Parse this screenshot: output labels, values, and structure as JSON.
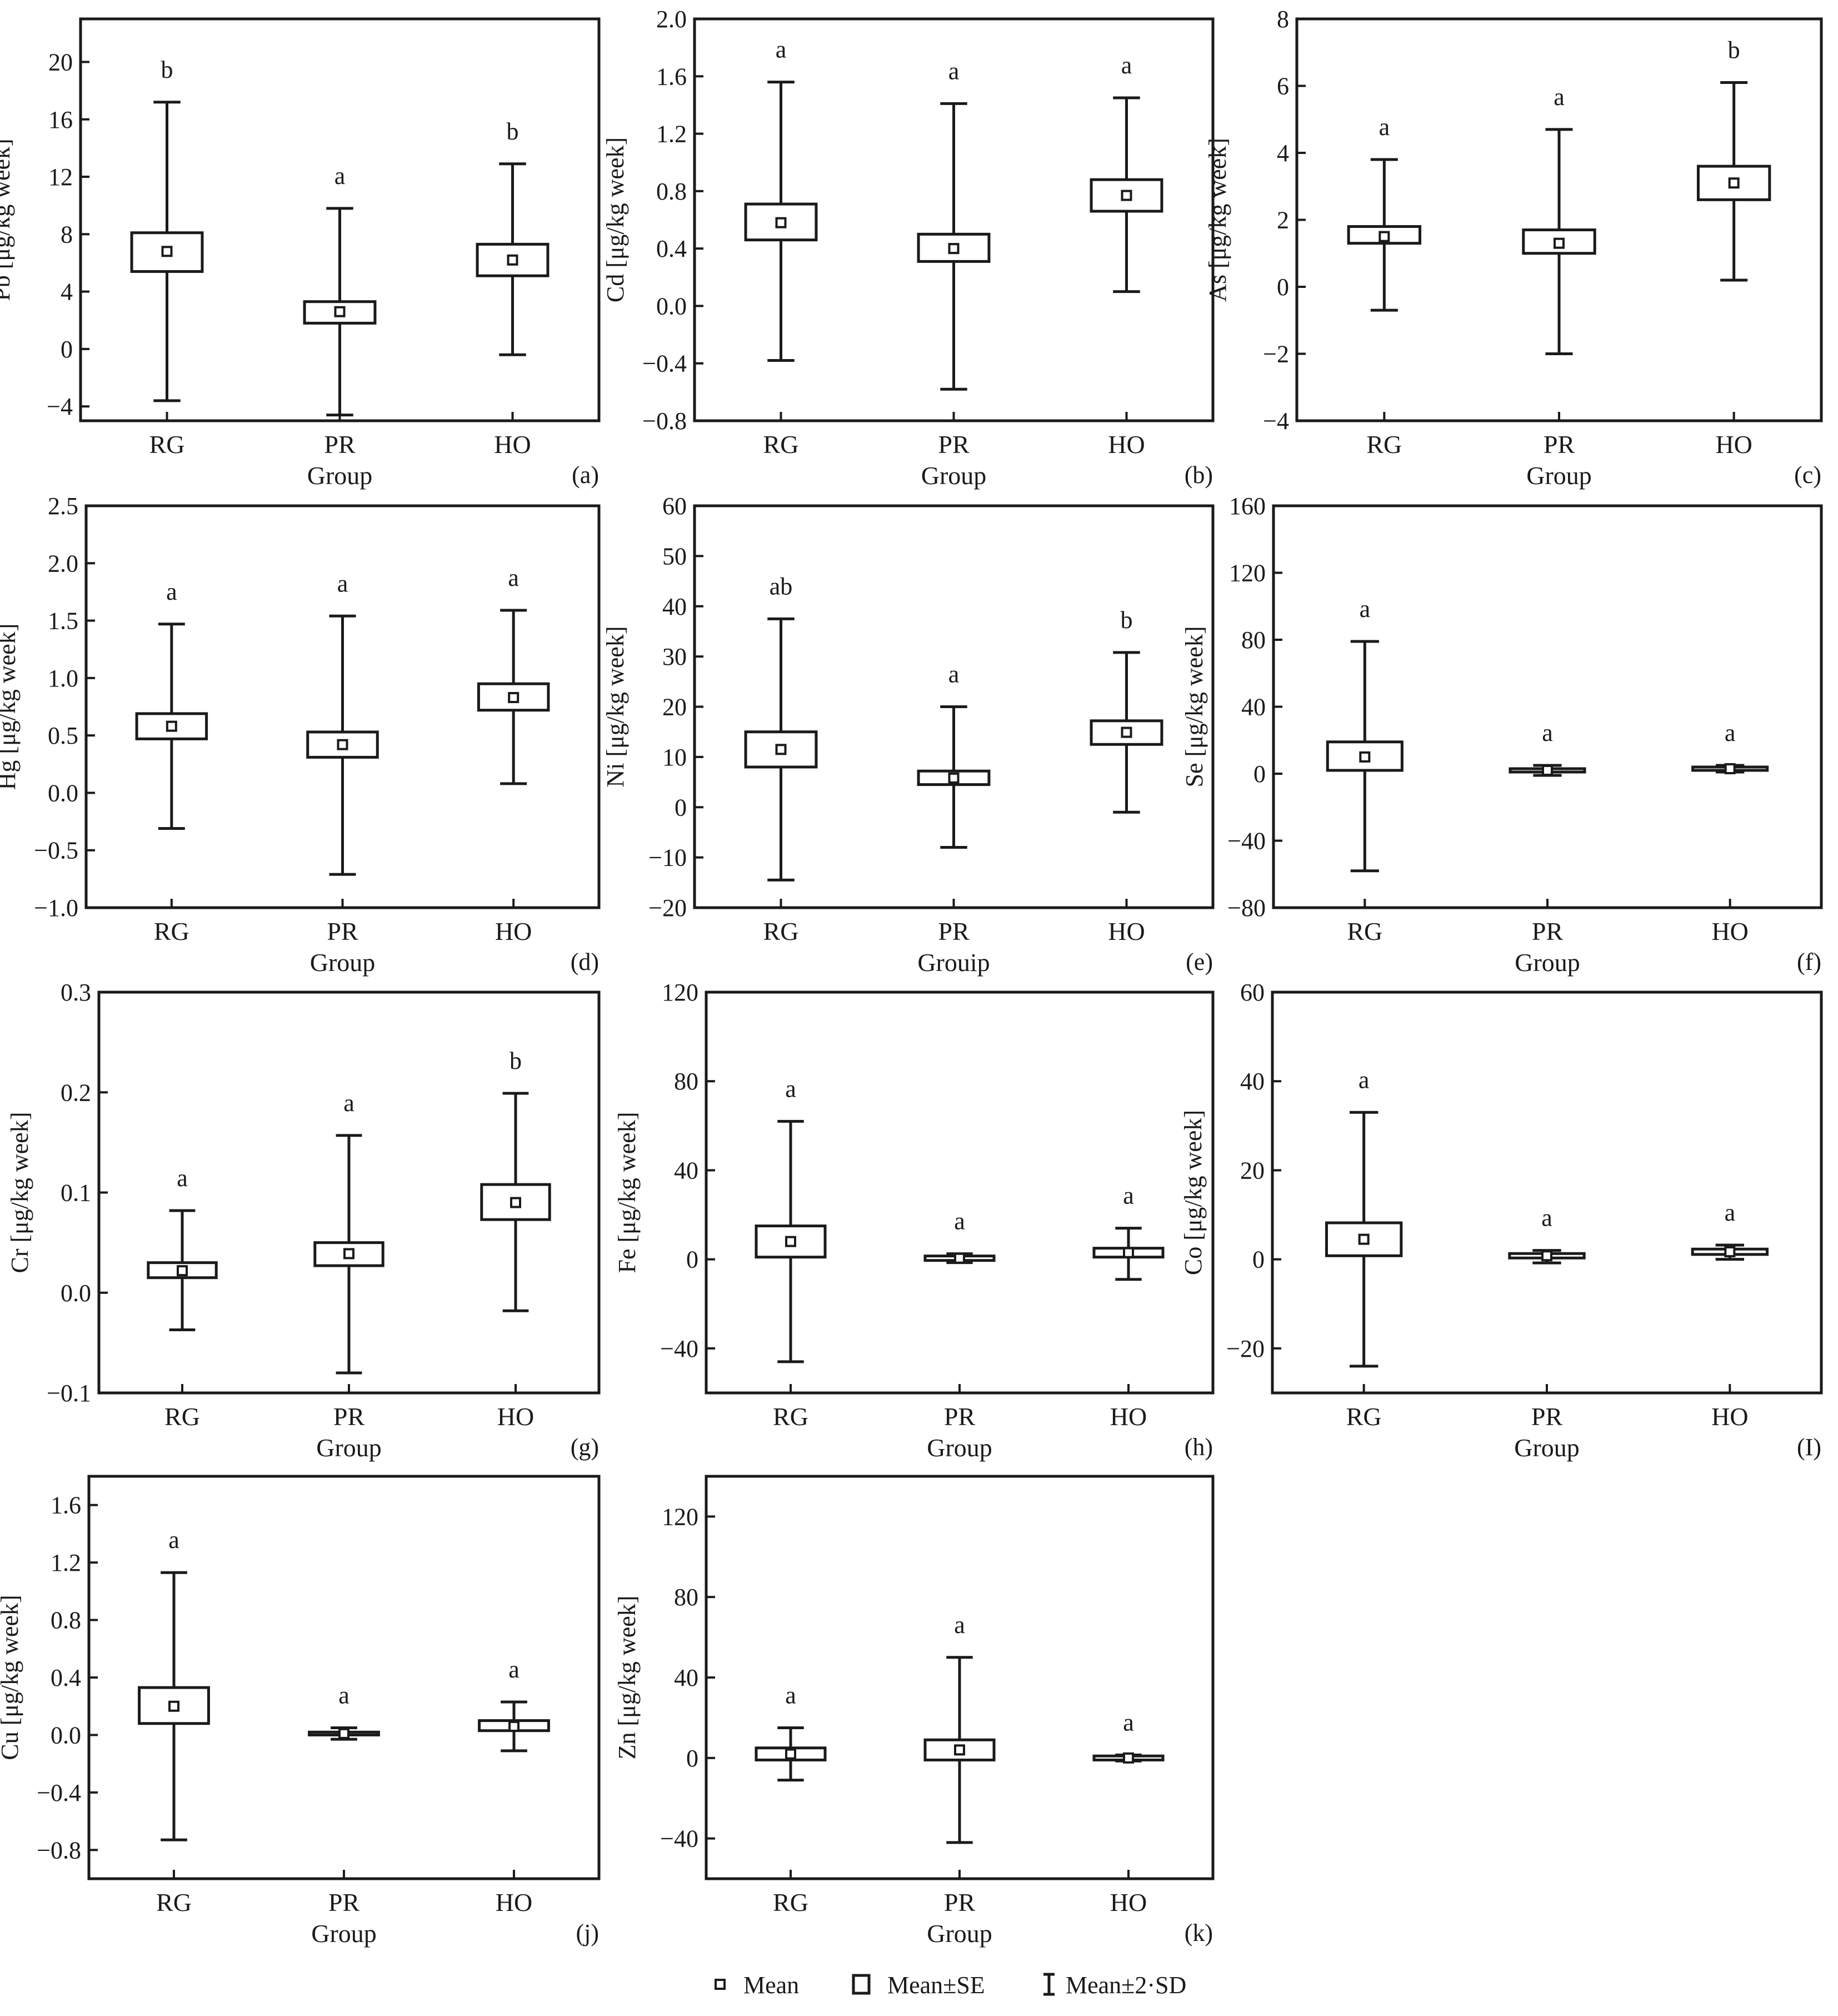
{
  "colors": {
    "ink": "#1a1a1a",
    "background": "#ffffff"
  },
  "legend": {
    "items": [
      {
        "symbol": "mean-marker",
        "label": "Mean"
      },
      {
        "symbol": "se-box",
        "label": "Mean±SE"
      },
      {
        "symbol": "sd-whisker",
        "label": "Mean±2·SD"
      }
    ]
  },
  "chart_data": [
    {
      "type": "boxplot",
      "panel_label": "(a)",
      "ylabel": "Pb [μg/kg week]",
      "xlabel": "Group",
      "categories": [
        "RG",
        "PR",
        "HO"
      ],
      "ylim": [
        -5,
        23
      ],
      "yticks": [
        -4,
        0,
        4,
        8,
        12,
        16,
        20
      ],
      "ytick_labels": [
        "−4",
        "0",
        "4",
        "8",
        "12",
        "16",
        "20"
      ],
      "mean": [
        6.8,
        2.6,
        6.2
      ],
      "se_low": [
        5.4,
        1.8,
        5.1
      ],
      "se_high": [
        8.1,
        3.3,
        7.3
      ],
      "sd_low": [
        -3.6,
        -4.6,
        -0.4
      ],
      "sd_high": [
        17.2,
        9.8,
        12.9
      ],
      "letters": [
        "b",
        "a",
        "b"
      ]
    },
    {
      "type": "boxplot",
      "panel_label": "(b)",
      "ylabel": "Cd [μg/kg week]",
      "xlabel": "Group",
      "categories": [
        "RG",
        "PR",
        "HO"
      ],
      "ylim": [
        -0.8,
        2.0
      ],
      "yticks": [
        -0.8,
        -0.4,
        0.0,
        0.4,
        0.8,
        1.2,
        1.6,
        2.0
      ],
      "ytick_labels": [
        "−0.8",
        "−0.4",
        "0.0",
        "0.4",
        "0.8",
        "1.2",
        "1.6",
        "2.0"
      ],
      "mean": [
        0.58,
        0.4,
        0.77
      ],
      "se_low": [
        0.46,
        0.31,
        0.66
      ],
      "se_high": [
        0.71,
        0.5,
        0.88
      ],
      "sd_low": [
        -0.38,
        -0.58,
        0.1
      ],
      "sd_high": [
        1.56,
        1.41,
        1.45
      ],
      "letters": [
        "a",
        "a",
        "a"
      ]
    },
    {
      "type": "boxplot",
      "panel_label": "(c)",
      "ylabel": "As [μg/kg week]",
      "xlabel": "Group",
      "categories": [
        "RG",
        "PR",
        "HO"
      ],
      "ylim": [
        -4,
        8
      ],
      "yticks": [
        -4,
        -2,
        0,
        2,
        4,
        6,
        8
      ],
      "ytick_labels": [
        "−4",
        "−2",
        "0",
        "2",
        "4",
        "6",
        "8"
      ],
      "mean": [
        1.5,
        1.3,
        3.1
      ],
      "se_low": [
        1.3,
        1.0,
        2.6
      ],
      "se_high": [
        1.8,
        1.7,
        3.6
      ],
      "sd_low": [
        -0.7,
        -2.0,
        0.2
      ],
      "sd_high": [
        3.8,
        4.7,
        6.1
      ],
      "letters": [
        "a",
        "a",
        "b"
      ]
    },
    {
      "type": "boxplot",
      "panel_label": "(d)",
      "ylabel": "Hg [μg/kg week]",
      "xlabel": "Group",
      "categories": [
        "RG",
        "PR",
        "HO"
      ],
      "ylim": [
        -1.0,
        2.5
      ],
      "yticks": [
        -1.0,
        -0.5,
        0.0,
        0.5,
        1.0,
        1.5,
        2.0,
        2.5
      ],
      "ytick_labels": [
        "−1.0",
        "−0.5",
        "0.0",
        "0.5",
        "1.0",
        "1.5",
        "2.0",
        "2.5"
      ],
      "mean": [
        0.58,
        0.42,
        0.83
      ],
      "se_low": [
        0.47,
        0.31,
        0.72
      ],
      "se_high": [
        0.69,
        0.53,
        0.95
      ],
      "sd_low": [
        -0.31,
        -0.71,
        0.08
      ],
      "sd_high": [
        1.47,
        1.54,
        1.59
      ],
      "letters": [
        "a",
        "a",
        "a"
      ]
    },
    {
      "type": "boxplot",
      "panel_label": "(e)",
      "ylabel": "Ni [μg/kg week]",
      "xlabel": "Grouip",
      "categories": [
        "RG",
        "PR",
        "HO"
      ],
      "ylim": [
        -20,
        60
      ],
      "yticks": [
        -20,
        -10,
        0,
        10,
        20,
        30,
        40,
        50,
        60
      ],
      "ytick_labels": [
        "−20",
        "−10",
        "0",
        "10",
        "20",
        "30",
        "40",
        "50",
        "60"
      ],
      "mean": [
        11.5,
        5.8,
        14.9
      ],
      "se_low": [
        8.0,
        4.5,
        12.5
      ],
      "se_high": [
        15.0,
        7.2,
        17.2
      ],
      "sd_low": [
        -14.5,
        -8.0,
        -1.0
      ],
      "sd_high": [
        37.5,
        20.0,
        30.8
      ],
      "letters": [
        "ab",
        "a",
        "b"
      ]
    },
    {
      "type": "boxplot",
      "panel_label": "(f)",
      "ylabel": "Se [μg/kg week]",
      "xlabel": "Group",
      "categories": [
        "RG",
        "PR",
        "HO"
      ],
      "ylim": [
        -80,
        160
      ],
      "yticks": [
        -80,
        -40,
        0,
        40,
        80,
        120,
        160
      ],
      "ytick_labels": [
        "−80",
        "−40",
        "0",
        "40",
        "80",
        "120",
        "160"
      ],
      "mean": [
        10,
        2,
        3
      ],
      "se_low": [
        2,
        1,
        2
      ],
      "se_high": [
        19,
        3,
        4
      ],
      "sd_low": [
        -58,
        -1,
        1
      ],
      "sd_high": [
        79,
        5,
        5
      ],
      "letters": [
        "a",
        "a",
        "a"
      ]
    },
    {
      "type": "boxplot",
      "panel_label": "(g)",
      "ylabel": "Cr [μg/kg week]",
      "xlabel": "Group",
      "categories": [
        "RG",
        "PR",
        "HO"
      ],
      "ylim": [
        -0.1,
        0.3
      ],
      "yticks": [
        -0.1,
        0.0,
        0.1,
        0.2,
        0.3
      ],
      "ytick_labels": [
        "−0.1",
        "0.0",
        "0.1",
        "0.2",
        "0.3"
      ],
      "mean": [
        0.022,
        0.039,
        0.09
      ],
      "se_low": [
        0.015,
        0.027,
        0.073
      ],
      "se_high": [
        0.03,
        0.05,
        0.108
      ],
      "sd_low": [
        -0.037,
        -0.08,
        -0.018
      ],
      "sd_high": [
        0.082,
        0.157,
        0.199
      ],
      "letters": [
        "a",
        "a",
        "b"
      ]
    },
    {
      "type": "boxplot",
      "panel_label": "(h)",
      "ylabel": "Fe [μg/kg week]",
      "xlabel": "Group",
      "categories": [
        "RG",
        "PR",
        "HO"
      ],
      "ylim": [
        -60,
        120
      ],
      "yticks": [
        -40,
        0,
        40,
        80,
        120
      ],
      "ytick_labels": [
        "−40",
        "0",
        "40",
        "80",
        "120"
      ],
      "mean": [
        8,
        0.5,
        3
      ],
      "se_low": [
        1,
        -0.5,
        1
      ],
      "se_high": [
        15,
        1.5,
        5
      ],
      "sd_low": [
        -46,
        -1.5,
        -9
      ],
      "sd_high": [
        62,
        2.5,
        14
      ],
      "letters": [
        "a",
        "a",
        "a"
      ]
    },
    {
      "type": "boxplot",
      "panel_label": "(I)",
      "ylabel": "Co [μg/kg week]",
      "xlabel": "Group",
      "categories": [
        "RG",
        "PR",
        "HO"
      ],
      "ylim": [
        -30,
        60
      ],
      "yticks": [
        -20,
        0,
        20,
        40,
        60
      ],
      "ytick_labels": [
        "−20",
        "0",
        "20",
        "40",
        "60"
      ],
      "mean": [
        4.5,
        0.8,
        1.7
      ],
      "se_low": [
        0.8,
        0.3,
        1.1
      ],
      "se_high": [
        8.2,
        1.3,
        2.3
      ],
      "sd_low": [
        -24,
        -0.8,
        0
      ],
      "sd_high": [
        33,
        2,
        3.2
      ],
      "letters": [
        "a",
        "a",
        "a"
      ]
    },
    {
      "type": "boxplot",
      "panel_label": "(j)",
      "ylabel": "Cu [μg/kg week]",
      "xlabel": "Group",
      "categories": [
        "RG",
        "PR",
        "HO"
      ],
      "ylim": [
        -1.0,
        1.8
      ],
      "yticks": [
        -0.8,
        -0.4,
        0.0,
        0.4,
        0.8,
        1.2,
        1.6
      ],
      "ytick_labels": [
        "−0.8",
        "−0.4",
        "0.0",
        "0.4",
        "0.8",
        "1.2",
        "1.6"
      ],
      "mean": [
        0.2,
        0.01,
        0.06
      ],
      "se_low": [
        0.08,
        0.0,
        0.03
      ],
      "se_high": [
        0.33,
        0.02,
        0.1
      ],
      "sd_low": [
        -0.73,
        -0.03,
        -0.11
      ],
      "sd_high": [
        1.13,
        0.05,
        0.23
      ],
      "letters": [
        "a",
        "a",
        "a"
      ]
    },
    {
      "type": "boxplot",
      "panel_label": "(k)",
      "ylabel": "Zn [μg/kg week]",
      "xlabel": "Group",
      "categories": [
        "RG",
        "PR",
        "HO"
      ],
      "ylim": [
        -60,
        140
      ],
      "yticks": [
        -40,
        0,
        40,
        80,
        120
      ],
      "ytick_labels": [
        "−40",
        "0",
        "40",
        "80",
        "120"
      ],
      "mean": [
        2,
        4,
        0
      ],
      "se_low": [
        -1,
        -1,
        -1
      ],
      "se_high": [
        5,
        9,
        1
      ],
      "sd_low": [
        -11,
        -42,
        -1.5
      ],
      "sd_high": [
        15,
        50,
        1.5
      ],
      "letters": [
        "a",
        "a",
        "a"
      ]
    }
  ]
}
